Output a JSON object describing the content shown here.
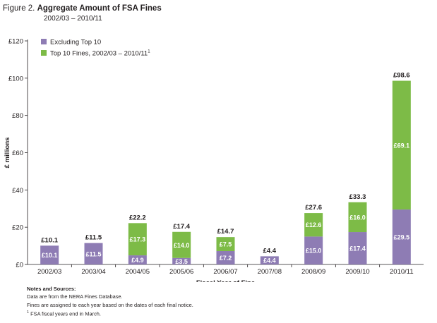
{
  "figure": {
    "number": "Figure 2.",
    "title": "Aggregate Amount of FSA Fines",
    "subtitle": "2002/03 – 2010/11"
  },
  "notes": {
    "heading": "Notes and Sources:",
    "lines": [
      "Data are from the NERA Fines Database.",
      "Fines are assigned to each year based on the dates of each final notice."
    ],
    "footnote_mark": "1",
    "footnote_text": "FSA fiscal years end in March."
  },
  "colors": {
    "excluding": "#8e7cb4",
    "top10": "#7dbb47",
    "axis": "#231f20",
    "background": "#ffffff"
  },
  "chart_data": {
    "type": "bar",
    "stacked": true,
    "xlabel": "Fiscal Year of Fine",
    "ylabel": "£ millions",
    "ylim": [
      0,
      120
    ],
    "yticks": [
      0,
      20,
      40,
      60,
      80,
      100,
      120
    ],
    "ytick_labels": [
      "£0",
      "£20",
      "£40",
      "£60",
      "£80",
      "£100",
      "£120"
    ],
    "grid": false,
    "legend_position": "top-left",
    "categories": [
      "2002/03",
      "2003/04",
      "2004/05",
      "2005/06",
      "2006/07",
      "2007/08",
      "2008/09",
      "2009/10",
      "2010/11"
    ],
    "series": [
      {
        "name": "Excluding Top 10",
        "values": [
          10.1,
          11.5,
          4.9,
          3.5,
          7.2,
          4.4,
          15.0,
          17.4,
          29.5
        ],
        "labels": [
          "£10.1",
          "£11.5",
          "£4.9",
          "£3.5",
          "£7.2",
          "£4.4",
          "£15.0",
          "£17.4",
          "£29.5"
        ]
      },
      {
        "name": "Top 10 Fines, 2002/03 – 2010/11",
        "name_superscript": "1",
        "values": [
          0,
          0,
          17.3,
          14.0,
          7.5,
          0,
          12.6,
          16.0,
          69.1
        ],
        "labels": [
          "",
          "",
          "£17.3",
          "£14.0",
          "£7.5",
          "",
          "£12.6",
          "£16.0",
          "£69.1"
        ]
      }
    ],
    "totals": [
      10.1,
      11.5,
      22.2,
      17.4,
      14.7,
      4.4,
      27.6,
      33.3,
      98.6
    ],
    "total_labels": [
      "£10.1",
      "£11.5",
      "£22.2",
      "£17.4",
      "£14.7",
      "£4.4",
      "£27.6",
      "£33.3",
      "£98.6"
    ]
  }
}
